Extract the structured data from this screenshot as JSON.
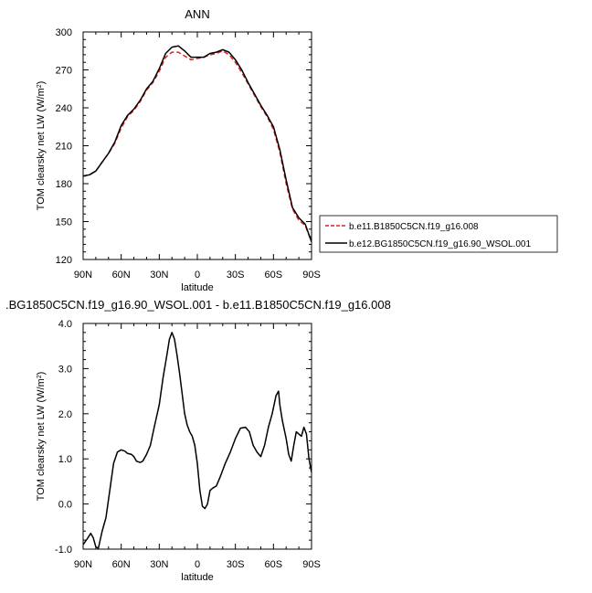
{
  "chart_data": [
    {
      "type": "line",
      "title": "ANN",
      "xlabel": "latitude",
      "ylabel": "TOM clearsky net LW (W/m",
      "ylabel_sup": "2",
      "ylabel_close": ")",
      "xlim": [
        90,
        -90
      ],
      "ylim": [
        120,
        300
      ],
      "xticks": [
        90,
        60,
        30,
        0,
        -30,
        -60,
        -90
      ],
      "xtick_labels": [
        "90N",
        "60N",
        "30N",
        "0",
        "30S",
        "60S",
        "90S"
      ],
      "yticks": [
        120,
        150,
        180,
        210,
        240,
        270,
        300
      ],
      "ytick_labels": [
        "120",
        "150",
        "180",
        "210",
        "240",
        "270",
        "300"
      ],
      "legend_position": "right",
      "x": [
        90,
        85,
        80,
        75,
        70,
        65,
        60,
        55,
        50,
        45,
        40,
        35,
        30,
        25,
        20,
        15,
        10,
        5,
        0,
        -5,
        -10,
        -15,
        -20,
        -25,
        -30,
        -35,
        -40,
        -45,
        -50,
        -55,
        -60,
        -65,
        -70,
        -75,
        -80,
        -85,
        -90
      ],
      "series": [
        {
          "name": "b.e11.B1850C5CN.f19_g16.008",
          "color": "#e0201b",
          "dash": "dashed",
          "values": [
            186,
            187,
            190,
            197,
            204,
            212,
            224,
            233,
            238,
            245,
            254,
            260,
            269,
            280,
            284,
            284,
            281,
            278,
            279,
            280,
            282,
            283,
            285,
            282,
            276,
            268,
            259,
            250,
            241,
            233,
            223,
            205,
            180,
            160,
            151,
            147,
            134
          ]
        },
        {
          "name": "b.e12.BG1850C5CN.f19_g16.90_WSOL.001",
          "color": "#000000",
          "dash": "solid",
          "values": [
            186,
            187,
            190,
            197,
            204,
            213,
            226,
            234,
            239,
            246,
            255,
            261,
            271,
            283,
            288,
            289,
            285,
            280,
            280,
            280,
            283,
            284,
            286,
            284,
            278,
            270,
            260,
            251,
            242,
            234,
            225,
            207,
            183,
            161,
            153,
            148,
            134
          ]
        }
      ]
    },
    {
      "type": "line",
      "title": ".BG1850C5CN.f19_g16.90_WSOL.001 - b.e11.B1850C5CN.f19_g16.008",
      "xlabel": "latitude",
      "ylabel": "TOM clearsky net LW (W/m",
      "ylabel_sup": "2",
      "ylabel_close": ")",
      "xlim": [
        90,
        -90
      ],
      "ylim": [
        -1.0,
        4.0
      ],
      "xticks": [
        90,
        60,
        30,
        0,
        -30,
        -60,
        -90
      ],
      "xtick_labels": [
        "90N",
        "60N",
        "30N",
        "0",
        "30S",
        "60S",
        "90S"
      ],
      "yticks": [
        -1.0,
        0.0,
        1.0,
        2.0,
        3.0,
        4.0
      ],
      "ytick_labels": [
        "-1.0",
        "0.0",
        "1.0",
        "2.0",
        "3.0",
        "4.0"
      ],
      "series": [
        {
          "color": "#000000",
          "dash": "solid",
          "x": [
            90,
            87,
            84,
            82,
            80,
            78,
            75,
            72,
            69,
            66,
            63,
            60,
            57,
            55,
            52,
            50,
            48,
            45,
            43,
            40,
            37,
            34,
            30,
            27,
            24,
            22,
            20,
            18,
            16,
            14,
            12,
            10,
            8,
            6,
            4,
            2,
            0,
            -2,
            -4,
            -6,
            -8,
            -10,
            -12,
            -15,
            -18,
            -22,
            -26,
            -30,
            -34,
            -38,
            -41,
            -44,
            -47,
            -50,
            -53,
            -56,
            -59,
            -62,
            -64,
            -65,
            -67,
            -70,
            -72,
            -74,
            -76,
            -78,
            -80,
            -82,
            -84,
            -86,
            -88,
            -90
          ],
          "values": [
            -0.9,
            -0.78,
            -0.65,
            -0.75,
            -0.95,
            -0.98,
            -0.6,
            -0.3,
            0.3,
            0.9,
            1.15,
            1.2,
            1.17,
            1.12,
            1.1,
            1.05,
            0.95,
            0.92,
            0.95,
            1.1,
            1.3,
            1.7,
            2.2,
            2.8,
            3.3,
            3.65,
            3.8,
            3.65,
            3.3,
            2.9,
            2.45,
            2.0,
            1.75,
            1.6,
            1.5,
            1.3,
            0.9,
            0.3,
            -0.05,
            -0.1,
            0.0,
            0.3,
            0.35,
            0.4,
            0.6,
            0.9,
            1.15,
            1.45,
            1.68,
            1.7,
            1.6,
            1.3,
            1.15,
            1.05,
            1.3,
            1.7,
            2.0,
            2.4,
            2.5,
            2.2,
            1.85,
            1.45,
            1.1,
            0.95,
            1.3,
            1.6,
            1.55,
            1.5,
            1.7,
            1.55,
            1.0,
            0.7
          ]
        }
      ]
    }
  ]
}
